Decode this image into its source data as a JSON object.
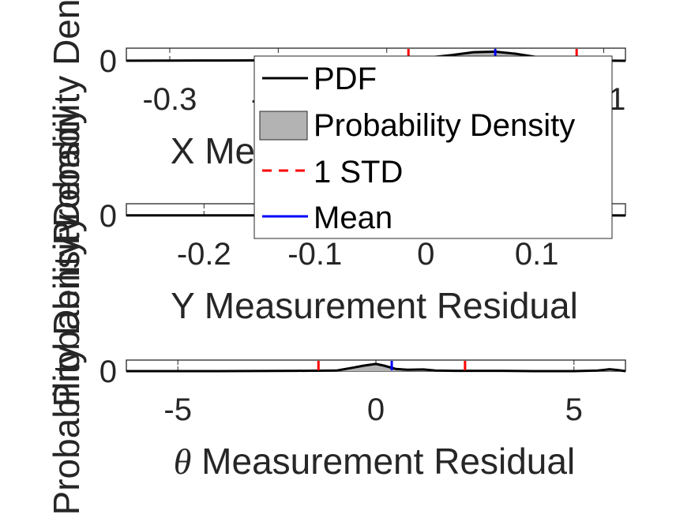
{
  "chart_data": [
    {
      "type": "area",
      "xlabel": "X Measurement Residual",
      "ylabel": "Probability Density",
      "xlim": [
        -0.34,
        0.12
      ],
      "ylim": [
        0,
        22
      ],
      "xticks": [
        -0.3,
        -0.2,
        -0.1,
        0,
        0.1
      ],
      "xtick_labels": [
        "-0.3",
        "-0.2",
        "-0.1",
        "0",
        "0.1"
      ],
      "yticks": [
        0
      ],
      "ytick_labels": [
        "0"
      ],
      "mean": 0.0,
      "std_lines": [
        -0.08,
        0.075
      ],
      "pdf": {
        "x": [
          -0.34,
          -0.3,
          -0.25,
          -0.2,
          -0.15,
          -0.12,
          -0.1,
          -0.08,
          -0.06,
          -0.04,
          -0.02,
          0.0,
          0.02,
          0.04,
          0.06,
          0.08,
          0.1,
          0.11,
          0.12
        ],
        "y": [
          0.2,
          0.3,
          0.5,
          0.8,
          1.0,
          1.2,
          1.8,
          3.0,
          6.0,
          10.0,
          15.0,
          16.0,
          12.0,
          6.0,
          2.0,
          0.5,
          0.2,
          0.1,
          0.0
        ]
      }
    },
    {
      "type": "area",
      "xlabel": "Y Measurement Residual",
      "ylabel": "Probability Density",
      "xlim": [
        -0.27,
        0.18
      ],
      "ylim": [
        0,
        22
      ],
      "xticks": [
        -0.2,
        -0.1,
        0,
        0.1
      ],
      "xtick_labels": [
        "-0.2",
        "-0.1",
        "0",
        "0.1"
      ],
      "yticks": [
        0
      ],
      "ytick_labels": [
        "0"
      ],
      "mean": 0.005,
      "std_lines": [
        -0.05,
        0.06
      ],
      "pdf": {
        "x": [
          -0.27,
          -0.2,
          -0.15,
          -0.1,
          -0.07,
          -0.05,
          -0.03,
          -0.01,
          0.0,
          0.01,
          0.03,
          0.05,
          0.06,
          0.08,
          0.1,
          0.13,
          0.16,
          0.18
        ],
        "y": [
          0.3,
          0.4,
          0.5,
          0.8,
          1.5,
          3.0,
          8.0,
          13.0,
          14.0,
          13.5,
          10.0,
          5.0,
          3.0,
          1.5,
          1.0,
          0.5,
          0.3,
          0.2
        ]
      }
    },
    {
      "type": "area",
      "xlabel": "θ Measurement Residual",
      "ylabel": "Probability Density",
      "xlim": [
        -6.3,
        6.3
      ],
      "ylim": [
        0,
        0.4
      ],
      "xticks": [
        -5,
        0,
        5
      ],
      "xtick_labels": [
        "-5",
        "0",
        "5"
      ],
      "yticks": [
        0
      ],
      "ytick_labels": [
        "0"
      ],
      "mean": 0.4,
      "std_lines": [
        -1.45,
        2.25
      ],
      "pdf": {
        "x": [
          -6.3,
          -4.0,
          -2.0,
          -1.0,
          -0.6,
          -0.3,
          0.0,
          0.2,
          0.5,
          0.8,
          1.2,
          1.5,
          2.0,
          3.0,
          4.0,
          5.0,
          5.6,
          5.9,
          6.1,
          6.3
        ],
        "y": [
          0.0,
          0.0,
          0.01,
          0.02,
          0.12,
          0.2,
          0.26,
          0.2,
          0.08,
          0.05,
          0.06,
          0.02,
          0.01,
          0.01,
          0.0,
          0.0,
          0.02,
          0.07,
          0.04,
          0.0
        ]
      }
    }
  ],
  "legend": {
    "location": "upper-center",
    "entries": [
      {
        "label": "PDF",
        "kind": "line",
        "color": "#000000"
      },
      {
        "label": "Probability Density",
        "kind": "patch",
        "color": "#b3b3b3"
      },
      {
        "label": "1 STD",
        "kind": "dashed",
        "color": "#ff0000"
      },
      {
        "label": "Mean",
        "kind": "line",
        "color": "#0000ff"
      }
    ]
  },
  "colors": {
    "pdf": "#000000",
    "fill": "#b3b3b3",
    "std": "#ff0000",
    "mean": "#0000ff",
    "axis": "#262626"
  }
}
